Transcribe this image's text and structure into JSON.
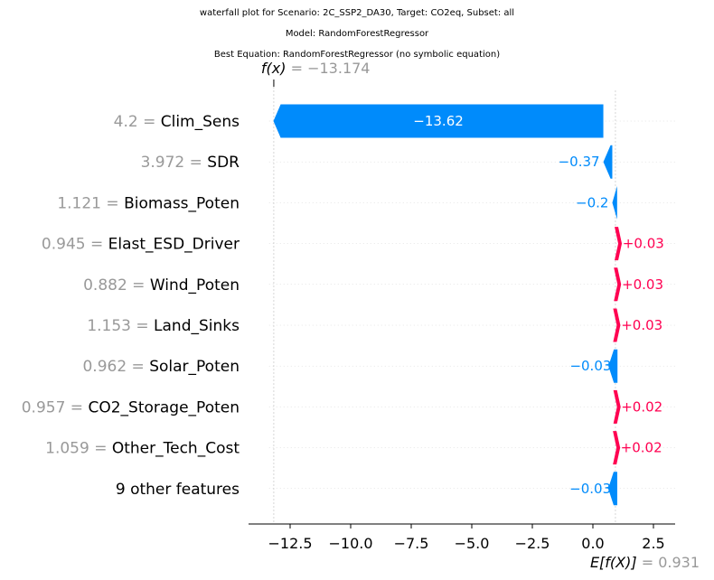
{
  "titles": {
    "line1": "waterfall plot for Scenario: 2C_SSP2_DA30, Target: CO2eq, Subset: all",
    "line2": "Model: RandomForestRegressor",
    "line3": "Best Equation: RandomForestRegressor (no symbolic equation)"
  },
  "chart_data": {
    "type": "waterfall",
    "base_value": 0.931,
    "output_value": -13.174,
    "fx_label": "f(x) = −13.174",
    "efx_label": "E[f(X)] = 0.931",
    "xlim": [
      -14.3,
      3.4
    ],
    "xticks": [
      -12.5,
      -10.0,
      -7.5,
      -5.0,
      -2.5,
      0.0,
      2.5
    ],
    "xtick_labels": [
      "−12.5",
      "−10.0",
      "−7.5",
      "−5.0",
      "−2.5",
      "0.0",
      "2.5"
    ],
    "features": [
      {
        "value": "4.2",
        "name": "Clim_Sens",
        "shap": -13.62,
        "label": "−13.62"
      },
      {
        "value": "3.972",
        "name": "SDR",
        "shap": -0.37,
        "label": "−0.37"
      },
      {
        "value": "1.121",
        "name": "Biomass_Poten",
        "shap": -0.2,
        "label": "−0.2"
      },
      {
        "value": "0.945",
        "name": "Elast_ESD_Driver",
        "shap": 0.03,
        "label": "+0.03"
      },
      {
        "value": "0.882",
        "name": "Wind_Poten",
        "shap": 0.03,
        "label": "+0.03"
      },
      {
        "value": "1.153",
        "name": "Land_Sinks",
        "shap": 0.03,
        "label": "+0.03"
      },
      {
        "value": "0.962",
        "name": "Solar_Poten",
        "shap": -0.03,
        "label": "−0.03"
      },
      {
        "value": "0.957",
        "name": "CO2_Storage_Poten",
        "shap": 0.02,
        "label": "+0.02"
      },
      {
        "value": "1.059",
        "name": "Other_Tech_Cost",
        "shap": 0.02,
        "label": "+0.02"
      },
      {
        "value": "",
        "name": "9 other features",
        "shap": -0.03,
        "label": "−0.03"
      }
    ],
    "colors": {
      "positive": "#ff0051",
      "negative": "#008bfb",
      "value_gray": "#999999"
    }
  }
}
